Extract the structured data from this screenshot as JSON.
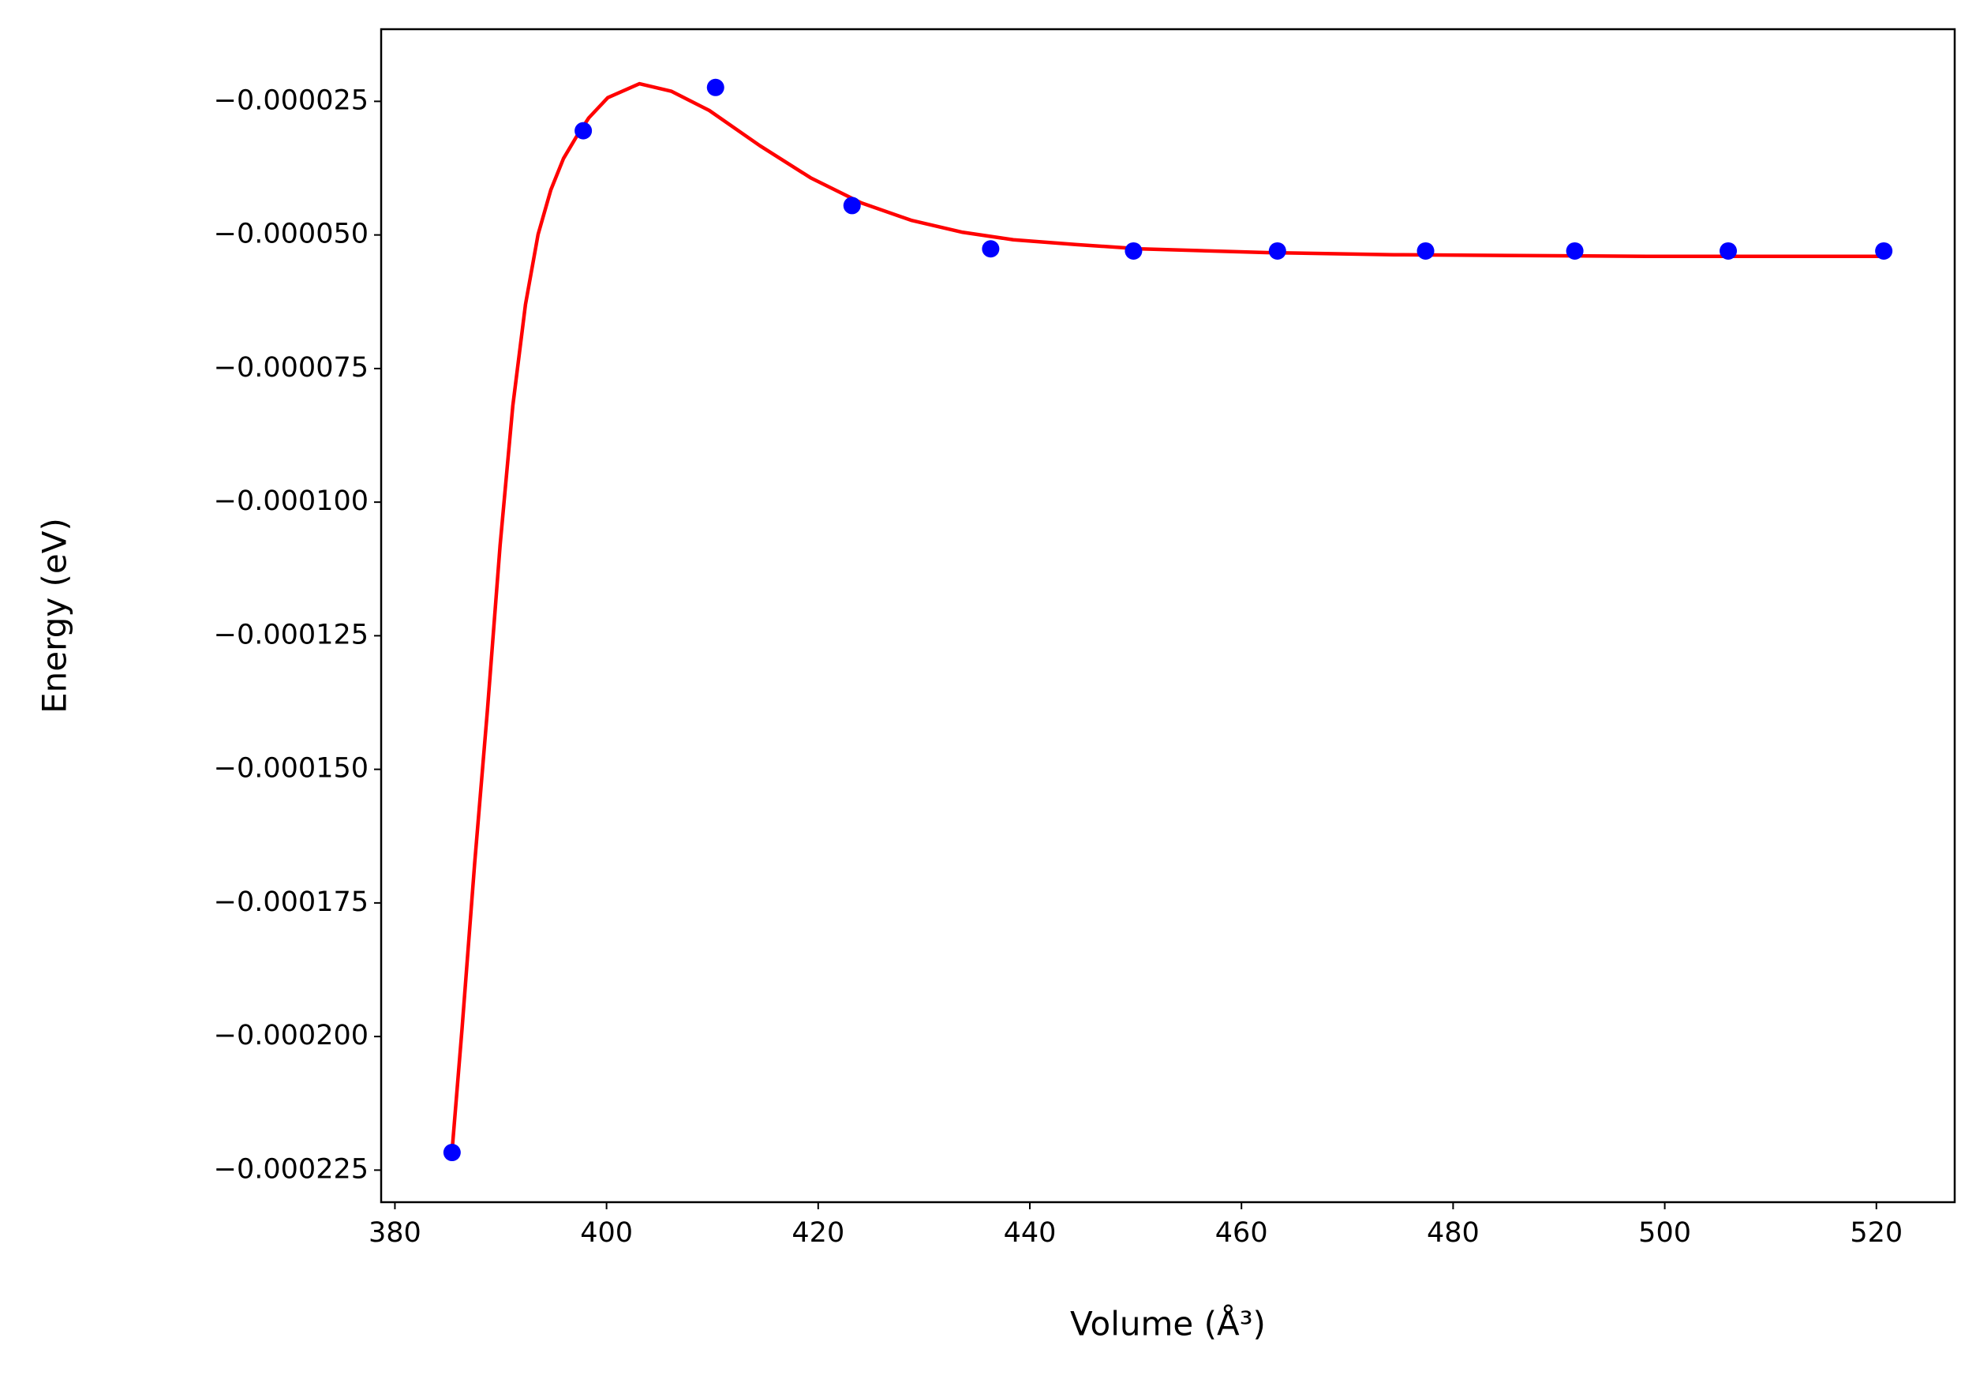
{
  "chart_data": {
    "type": "line",
    "xlabel": "Volume (Å³)",
    "ylabel": "Energy (eV)",
    "xlim": [
      378.7,
      527.4
    ],
    "ylim": [
      -0.000231,
      -1.15e-05
    ],
    "xticks": [
      380,
      400,
      420,
      440,
      460,
      480,
      500,
      520
    ],
    "yticks": [
      {
        "value": -2.5e-05,
        "label": "−0.000025"
      },
      {
        "value": -5e-05,
        "label": "−0.000050"
      },
      {
        "value": -7.5e-05,
        "label": "−0.000075"
      },
      {
        "value": -0.0001,
        "label": "−0.000100"
      },
      {
        "value": -0.000125,
        "label": "−0.000125"
      },
      {
        "value": -0.00015,
        "label": "−0.000150"
      },
      {
        "value": -0.000175,
        "label": "−0.000175"
      },
      {
        "value": -0.0002,
        "label": "−0.000200"
      },
      {
        "value": -0.000225,
        "label": "−0.000225"
      }
    ],
    "grid": false,
    "series": [
      {
        "type": "line",
        "color": "#ff0000",
        "x": [
          385.39,
          386.35,
          387.54,
          388.74,
          389.94,
          391.14,
          392.34,
          393.53,
          394.73,
          395.93,
          397.13,
          398.32,
          400.12,
          403.11,
          406.11,
          409.7,
          414.49,
          419.28,
          424.07,
          428.86,
          433.65,
          438.44,
          444.43,
          450.42,
          462.4,
          474.37,
          498.32,
          520.72
        ],
        "values": [
          -0.0002217,
          -0.0001984,
          -0.0001675,
          -0.000139,
          -0.0001081,
          -8.2e-05,
          -6.3e-05,
          -4.99e-05,
          -4.16e-05,
          -3.57e-05,
          -3.17e-05,
          -2.81e-05,
          -2.43e-05,
          -2.17e-05,
          -2.31e-05,
          -2.67e-05,
          -3.33e-05,
          -3.93e-05,
          -4.4e-05,
          -4.73e-05,
          -4.95e-05,
          -5.09e-05,
          -5.18e-05,
          -5.26e-05,
          -5.33e-05,
          -5.37e-05,
          -5.4e-05,
          -5.4e-05
        ]
      },
      {
        "type": "scatter",
        "color": "#0000ff",
        "x": [
          385.4,
          397.8,
          410.3,
          423.2,
          436.3,
          449.8,
          463.4,
          477.4,
          491.5,
          506.0,
          520.7
        ],
        "values": [
          -0.0002217,
          -3.05e-05,
          -2.24e-05,
          -4.45e-05,
          -5.26e-05,
          -5.3e-05,
          -5.3e-05,
          -5.3e-05,
          -5.3e-05,
          -5.3e-05,
          -5.3e-05
        ]
      }
    ]
  }
}
